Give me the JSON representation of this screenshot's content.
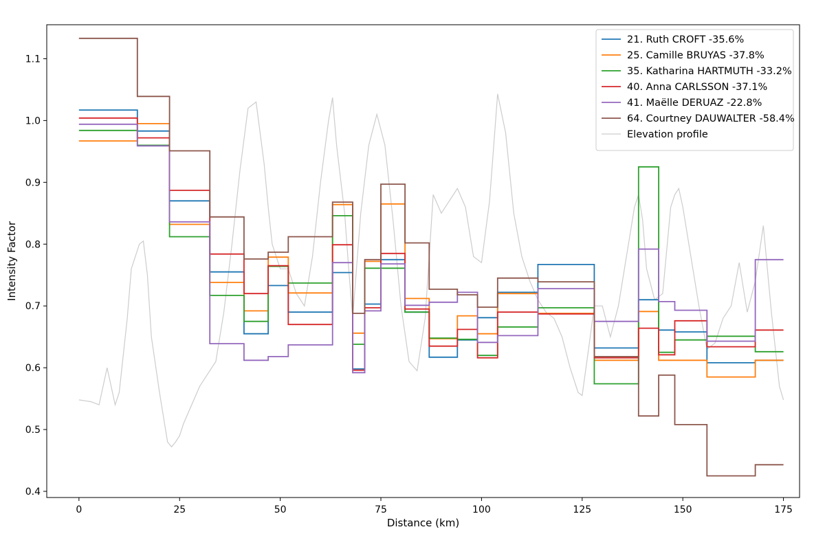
{
  "chart_data": {
    "type": "line",
    "title": "",
    "xlabel": "Distance (km)",
    "ylabel": "Intensity Factor",
    "xlim": [
      -8,
      179
    ],
    "ylim": [
      0.39,
      1.155
    ],
    "xticks": [
      0,
      25,
      50,
      75,
      100,
      125,
      150,
      175
    ],
    "yticks": [
      0.4,
      0.5,
      0.6,
      0.7,
      0.8,
      0.9,
      1.0,
      1.1
    ],
    "ytick_labels": [
      "0.4",
      "0.5",
      "0.6",
      "0.7",
      "0.8",
      "0.9",
      "1.0",
      "1.1"
    ],
    "grid": false,
    "legend_position": "top-right",
    "segment_boundaries_km": [
      0,
      14.5,
      22.5,
      32.5,
      41,
      47,
      52,
      63,
      68,
      71,
      75,
      81,
      87,
      94,
      99,
      104,
      114,
      128,
      139,
      144,
      148,
      156,
      168,
      175
    ],
    "series": [
      {
        "name": "21. Ruth CROFT -35.6%",
        "color": "#1f77b4",
        "values": [
          1.017,
          0.983,
          0.87,
          0.755,
          0.655,
          0.733,
          0.69,
          0.754,
          0.598,
          0.703,
          0.775,
          0.69,
          0.617,
          0.645,
          0.681,
          0.722,
          0.767,
          0.632,
          0.71,
          0.661,
          0.658,
          0.608,
          0.612
        ]
      },
      {
        "name": "25. Camille BRUYAS -37.8%",
        "color": "#ff7f0e",
        "values": [
          0.967,
          0.995,
          0.832,
          0.738,
          0.692,
          0.779,
          0.721,
          0.864,
          0.656,
          0.772,
          0.865,
          0.712,
          0.647,
          0.684,
          0.655,
          0.72,
          0.688,
          0.612,
          0.691,
          0.612,
          0.612,
          0.585,
          0.612
        ]
      },
      {
        "name": "35. Katharina HARTMUTH -33.2%",
        "color": "#2ca02c",
        "values": [
          0.984,
          0.96,
          0.812,
          0.717,
          0.675,
          0.764,
          0.737,
          0.846,
          0.638,
          0.761,
          0.761,
          0.69,
          0.648,
          0.646,
          0.62,
          0.666,
          0.697,
          0.574,
          0.925,
          0.625,
          0.645,
          0.651,
          0.626
        ]
      },
      {
        "name": "40. Anna CARLSSON -37.1%",
        "color": "#d62728",
        "values": [
          1.004,
          0.972,
          0.887,
          0.784,
          0.72,
          0.765,
          0.67,
          0.799,
          0.596,
          0.697,
          0.785,
          0.695,
          0.635,
          0.662,
          0.616,
          0.69,
          0.687,
          0.616,
          0.664,
          0.621,
          0.676,
          0.634,
          0.661
        ]
      },
      {
        "name": "41. Maëlle DERUAZ -22.8%",
        "color": "#9467bd",
        "values": [
          0.994,
          0.959,
          0.836,
          0.639,
          0.612,
          0.618,
          0.637,
          0.77,
          0.592,
          0.692,
          0.768,
          0.701,
          0.706,
          0.722,
          0.641,
          0.652,
          0.728,
          0.675,
          0.792,
          0.707,
          0.693,
          0.643,
          0.775
        ]
      },
      {
        "name": "64. Courtney DAUWALTER -58.4%",
        "color": "#8c564b",
        "values": [
          1.133,
          1.039,
          0.951,
          0.844,
          0.776,
          0.787,
          0.812,
          0.868,
          0.688,
          0.775,
          0.897,
          0.802,
          0.727,
          0.718,
          0.698,
          0.745,
          0.739,
          0.618,
          0.522,
          0.588,
          0.508,
          0.425,
          0.443
        ]
      }
    ],
    "elevation_profile": {
      "name": "Elevation profile",
      "color": "#cccccc",
      "x": [
        0,
        3,
        5,
        7,
        9,
        10,
        12,
        13,
        15,
        16,
        17,
        18,
        20,
        22,
        23,
        24,
        25,
        26,
        28,
        30,
        32,
        34,
        36,
        38,
        40,
        42,
        44,
        46,
        47,
        48,
        50,
        52,
        54,
        56,
        58,
        60,
        62,
        63,
        64,
        66,
        67,
        68,
        70,
        72,
        74,
        76,
        78,
        80,
        82,
        84,
        86,
        87,
        88,
        90,
        92,
        94,
        96,
        98,
        100,
        102,
        104,
        106,
        108,
        110,
        112,
        114,
        116,
        118,
        120,
        122,
        124,
        125,
        127,
        128,
        130,
        132,
        134,
        136,
        138,
        139,
        140,
        141,
        143,
        145,
        147,
        148,
        149,
        150,
        152,
        154,
        156,
        158,
        160,
        162,
        164,
        166,
        168,
        170,
        172,
        174,
        175
      ],
      "y": [
        0.548,
        0.545,
        0.54,
        0.6,
        0.54,
        0.56,
        0.68,
        0.76,
        0.8,
        0.805,
        0.75,
        0.65,
        0.56,
        0.48,
        0.472,
        0.48,
        0.49,
        0.51,
        0.54,
        0.57,
        0.59,
        0.61,
        0.69,
        0.8,
        0.92,
        1.02,
        1.03,
        0.93,
        0.86,
        0.8,
        0.76,
        0.76,
        0.72,
        0.7,
        0.78,
        0.9,
        1.0,
        1.037,
        0.96,
        0.85,
        0.76,
        0.68,
        0.85,
        0.96,
        1.01,
        0.96,
        0.84,
        0.7,
        0.61,
        0.595,
        0.68,
        0.78,
        0.88,
        0.85,
        0.87,
        0.89,
        0.86,
        0.78,
        0.77,
        0.87,
        1.043,
        0.98,
        0.85,
        0.78,
        0.74,
        0.71,
        0.69,
        0.68,
        0.65,
        0.6,
        0.56,
        0.555,
        0.65,
        0.7,
        0.7,
        0.65,
        0.7,
        0.78,
        0.86,
        0.88,
        0.84,
        0.76,
        0.71,
        0.72,
        0.86,
        0.88,
        0.89,
        0.86,
        0.78,
        0.7,
        0.63,
        0.64,
        0.68,
        0.7,
        0.77,
        0.69,
        0.74,
        0.83,
        0.69,
        0.57,
        0.548
      ]
    }
  }
}
